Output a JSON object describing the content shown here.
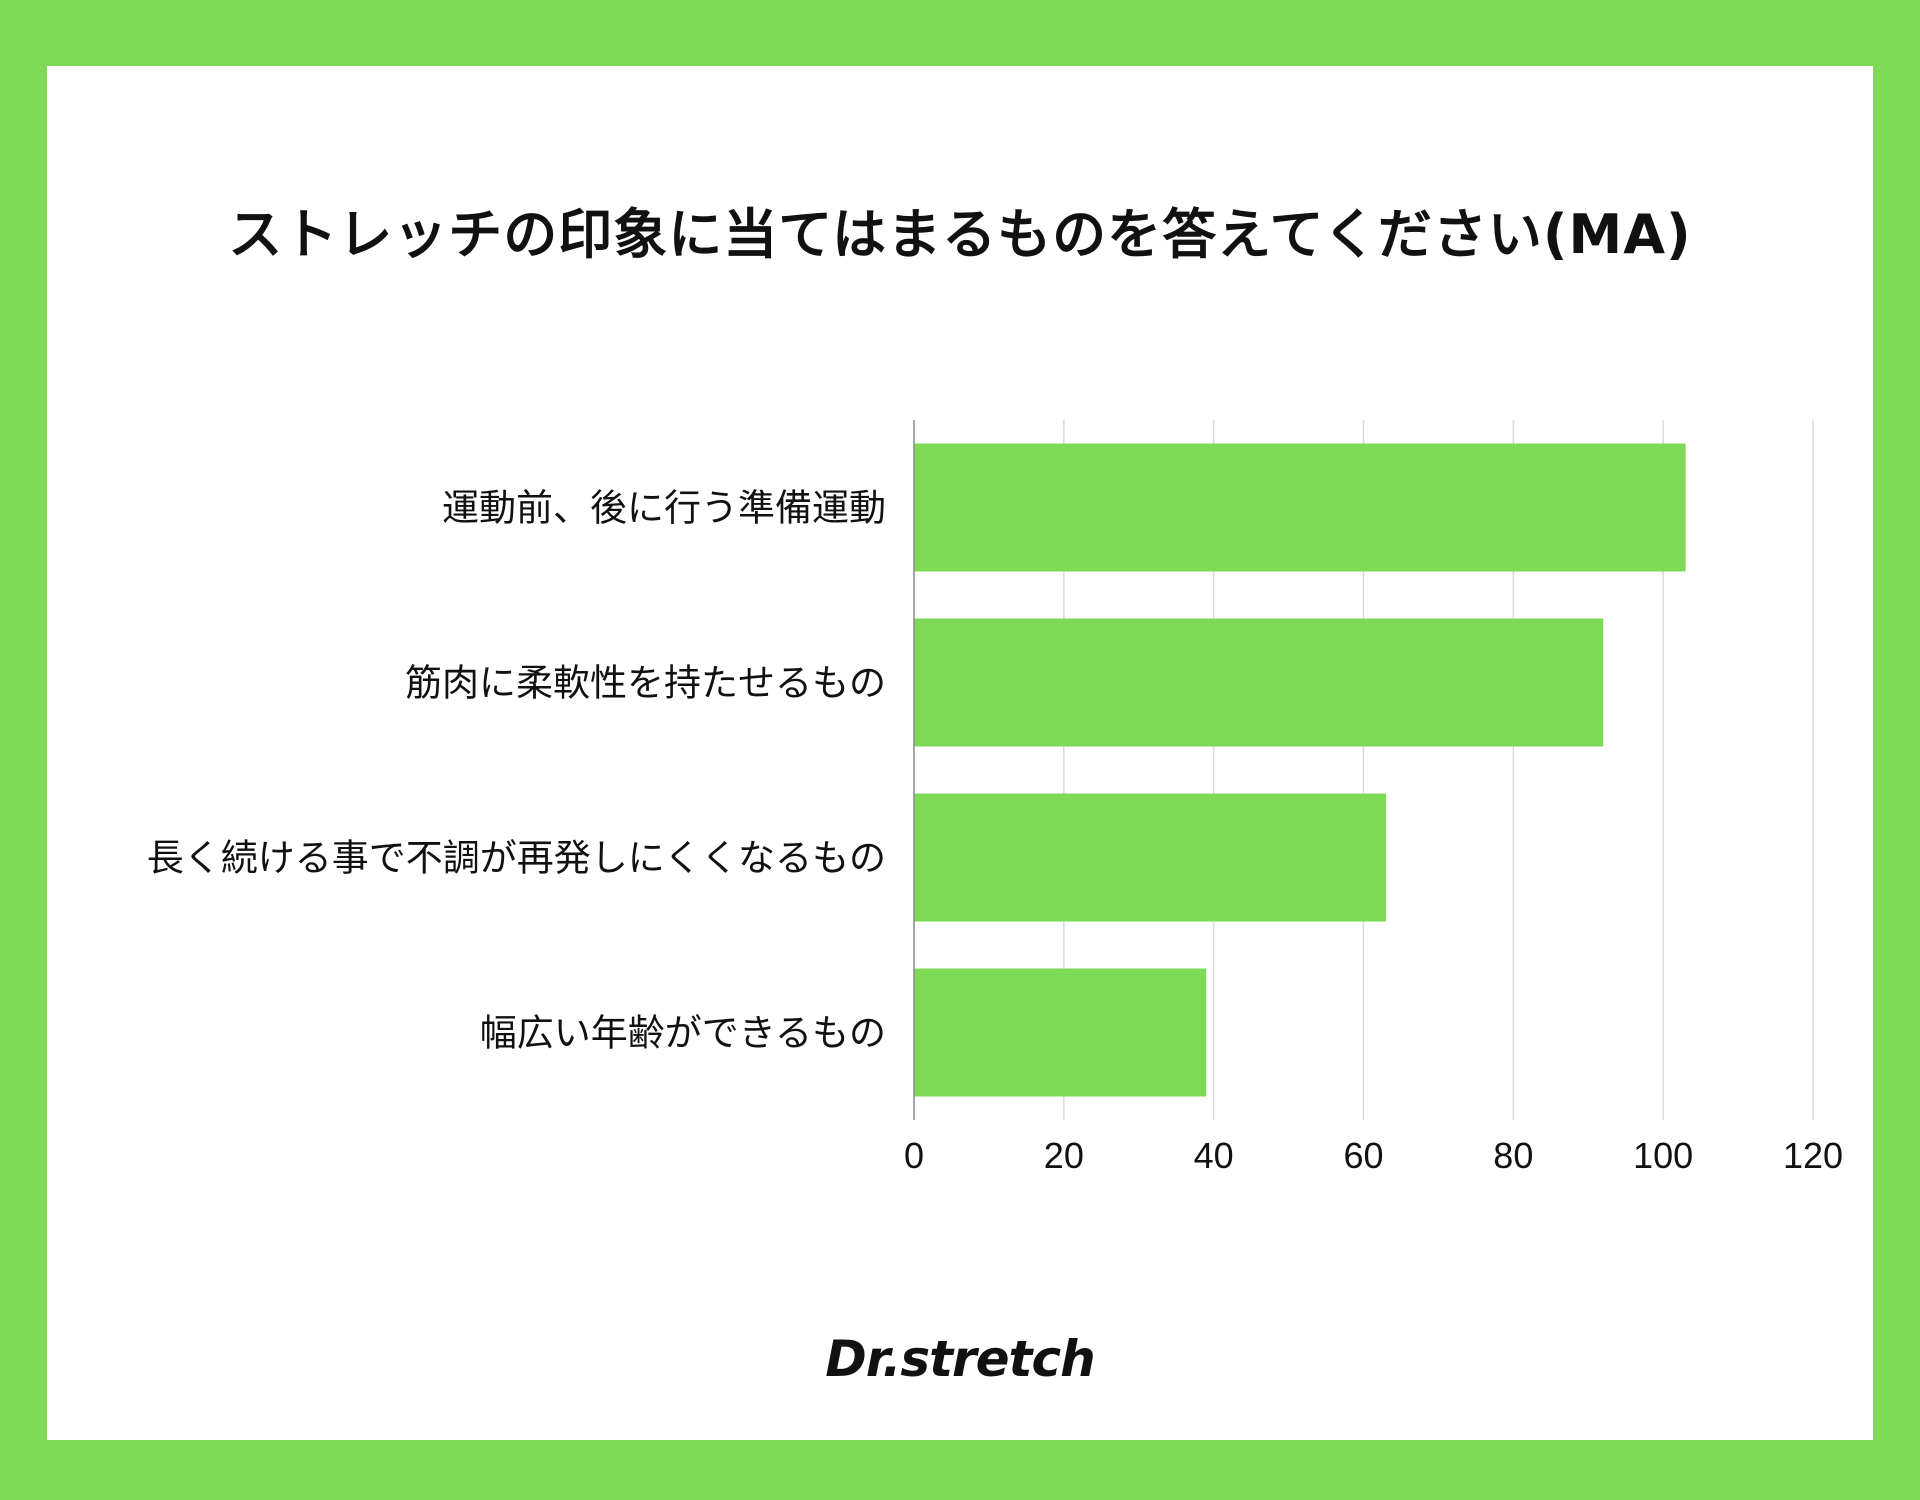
{
  "brand": {
    "logo_text": "Dr.stretch"
  },
  "colors": {
    "frame": "#7ed957",
    "bar": "#7ed957",
    "background": "#ffffff",
    "grid": "#d9d9d9",
    "axis": "#888888"
  },
  "chart_data": {
    "type": "bar",
    "orientation": "horizontal",
    "title": "ストレッチの印象に当てはまるものを答えてください(MA)",
    "categories": [
      "運動前、後に行う準備運動",
      "筋肉に柔軟性を持たせるもの",
      "長く続ける事で不調が再発しにくくなるもの",
      "幅広い年齢ができるもの"
    ],
    "values": [
      103,
      92,
      63,
      39
    ],
    "xlim": [
      0,
      120
    ],
    "x_ticks": [
      0,
      20,
      40,
      60,
      80,
      100,
      120
    ],
    "grid": true,
    "legend": "none"
  }
}
